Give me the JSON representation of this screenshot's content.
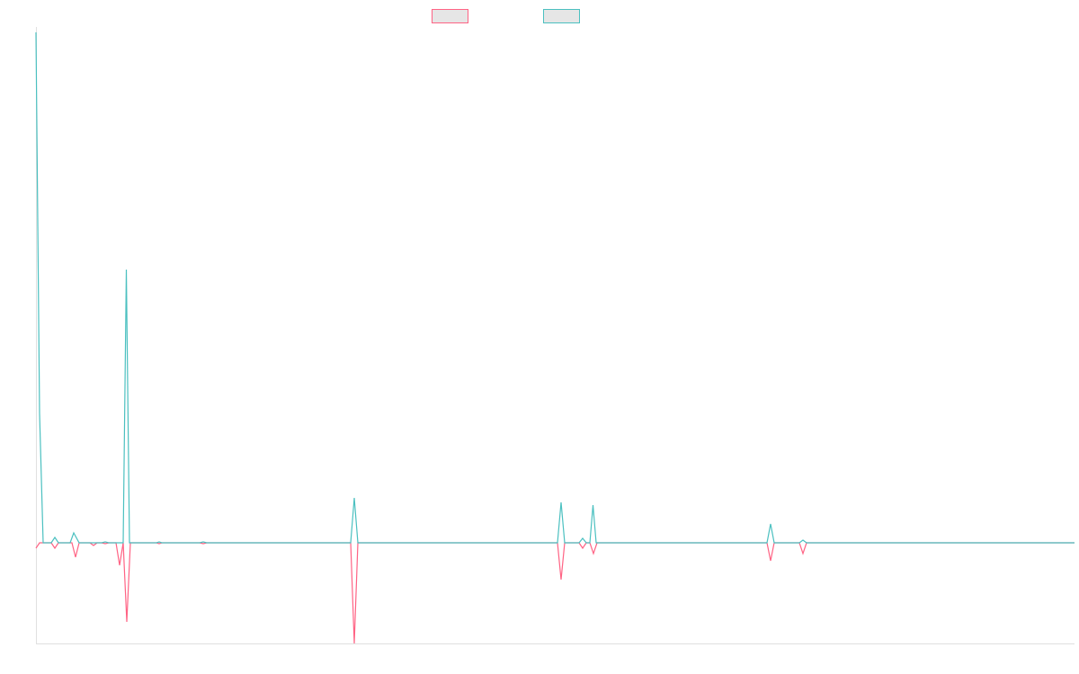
{
  "chart_data": {
    "type": "line",
    "xlim": [
      0,
      1155
    ],
    "ylim": [
      -112,
      568
    ],
    "series": [
      {
        "color": "#ff6384",
        "x": [
          0,
          4,
          17,
          21,
          25,
          40,
          44,
          48,
          60,
          64,
          68,
          73,
          77,
          81,
          89,
          93,
          97,
          101,
          105,
          134,
          137,
          140,
          182,
          186,
          190,
          350,
          354,
          358,
          580,
          584,
          588,
          604,
          608,
          612,
          616,
          620,
          624,
          813,
          817,
          821,
          849,
          853,
          857,
          1155
        ],
        "values": [
          -6,
          0,
          0,
          -6,
          0,
          0,
          -16,
          0,
          0,
          -3,
          0,
          0,
          -1,
          0,
          0,
          -25,
          0,
          -88,
          0,
          0,
          -1,
          0,
          0,
          -1,
          0,
          0,
          -112,
          0,
          0,
          -41,
          0,
          0,
          -6,
          0,
          0,
          -12,
          0,
          0,
          -20,
          0,
          0,
          -12,
          0,
          0
        ]
      },
      {
        "color": "#4bc0c0",
        "x": [
          0,
          4,
          8,
          17,
          21,
          25,
          38,
          42,
          48,
          73,
          77,
          81,
          97,
          100.5,
          104,
          134,
          137,
          140,
          182,
          186,
          190,
          350,
          354,
          358,
          580,
          584,
          588,
          604,
          608,
          612,
          616,
          619.5,
          623,
          813,
          817,
          821,
          849,
          853,
          857,
          1155
        ],
        "values": [
          568,
          144,
          0,
          0,
          6,
          0,
          0,
          11,
          0,
          0,
          1,
          0,
          0,
          304,
          0,
          0,
          1,
          0,
          0,
          1,
          0,
          0,
          50,
          0,
          0,
          45,
          0,
          0,
          5,
          0,
          0,
          42,
          0,
          0,
          21,
          0,
          0,
          3,
          0,
          0
        ]
      }
    ]
  }
}
